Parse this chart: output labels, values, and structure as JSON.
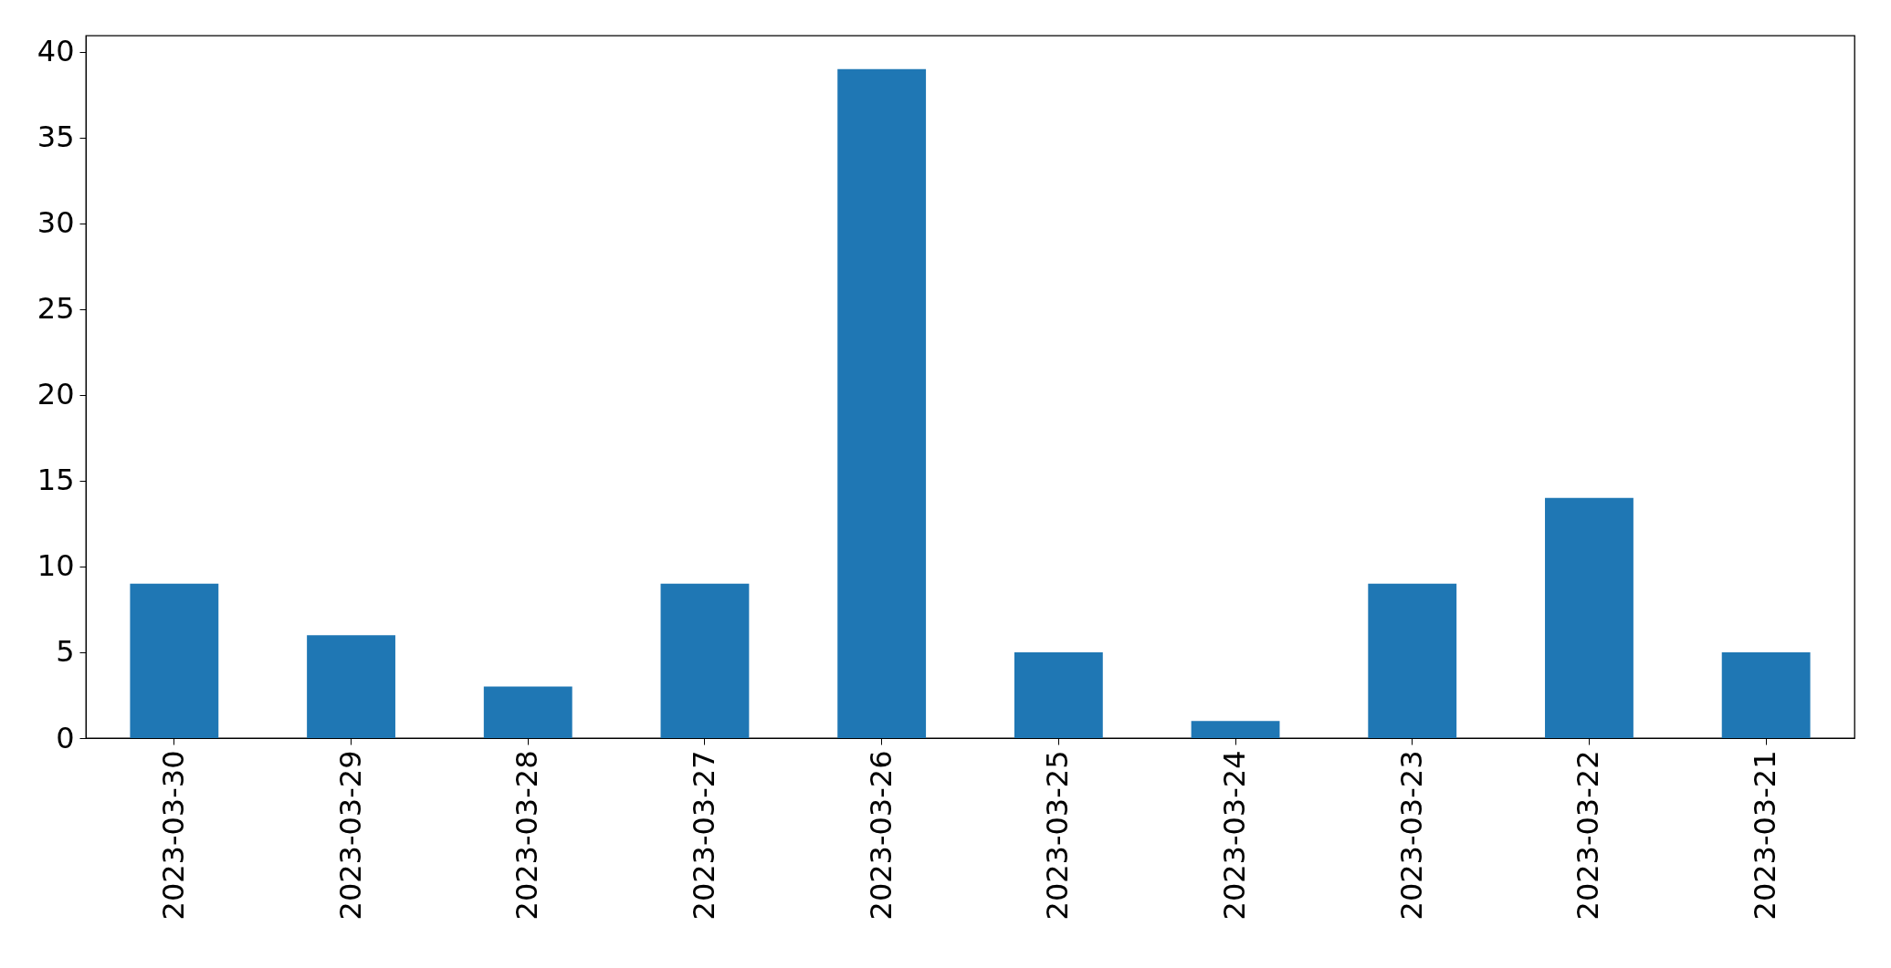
{
  "chart_data": {
    "type": "bar",
    "categories": [
      "2023-03-30",
      "2023-03-29",
      "2023-03-28",
      "2023-03-27",
      "2023-03-26",
      "2023-03-25",
      "2023-03-24",
      "2023-03-23",
      "2023-03-22",
      "2023-03-21"
    ],
    "values": [
      9,
      6,
      3,
      9,
      39,
      5,
      1,
      9,
      14,
      5
    ],
    "color": "#1f77b4",
    "ylim": [
      0,
      40.95
    ],
    "yticks": [
      0,
      5,
      10,
      15,
      20,
      25,
      30,
      35,
      40
    ]
  }
}
